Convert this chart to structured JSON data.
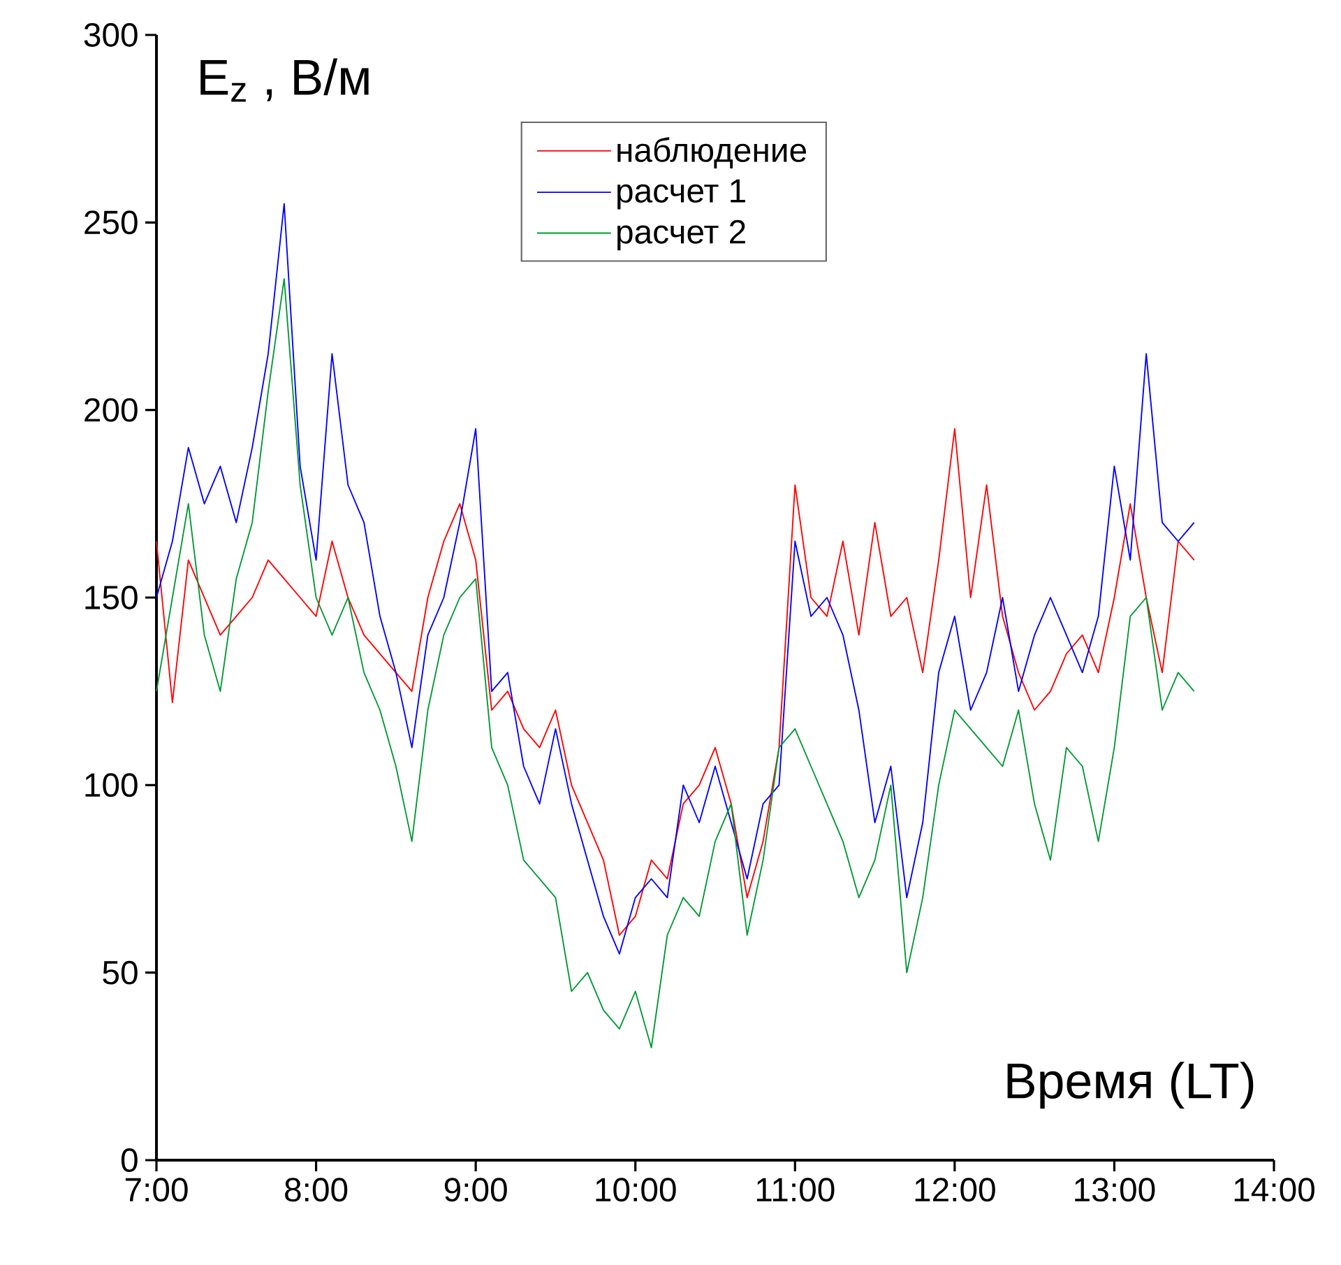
{
  "chart_data": {
    "type": "line",
    "xlabel": "Время (LT)",
    "ylabel": "E$_{z}$ , В/м",
    "x": [
      7.0,
      7.1,
      7.2,
      7.3,
      7.4,
      7.5,
      7.6,
      7.7,
      7.8,
      7.9,
      8.0,
      8.1,
      8.2,
      8.3,
      8.4,
      8.5,
      8.6,
      8.7,
      8.8,
      8.9,
      9.0,
      9.1,
      9.2,
      9.3,
      9.4,
      9.5,
      9.6,
      9.7,
      9.8,
      9.9,
      10.0,
      10.1,
      10.2,
      10.3,
      10.4,
      10.5,
      10.6,
      10.7,
      10.8,
      10.9,
      11.0,
      11.1,
      11.2,
      11.3,
      11.4,
      11.5,
      11.6,
      11.7,
      11.8,
      11.9,
      12.0,
      12.1,
      12.2,
      12.3,
      12.4,
      12.5,
      12.6,
      12.7,
      12.8,
      12.9,
      13.0,
      13.1,
      13.2,
      13.3,
      13.4,
      13.5
    ],
    "series": [
      {
        "name": "наблюдение",
        "color": "#ff0000",
        "values": [
          165,
          122,
          160,
          150,
          140,
          145,
          150,
          160,
          155,
          150,
          145,
          165,
          150,
          140,
          135,
          130,
          125,
          150,
          165,
          175,
          160,
          120,
          125,
          115,
          110,
          120,
          100,
          90,
          80,
          60,
          65,
          80,
          75,
          95,
          100,
          110,
          95,
          70,
          85,
          110,
          180,
          150,
          145,
          165,
          140,
          170,
          145,
          150,
          130,
          160,
          195,
          150,
          180,
          145,
          130,
          120,
          125,
          135,
          140,
          130,
          150,
          175,
          150,
          130,
          165,
          160
        ]
      },
      {
        "name": "расчет 1",
        "color": "#0000ff",
        "values": [
          150,
          165,
          190,
          175,
          185,
          170,
          190,
          215,
          255,
          185,
          160,
          215,
          180,
          170,
          145,
          130,
          110,
          140,
          150,
          170,
          195,
          125,
          130,
          105,
          95,
          115,
          95,
          80,
          65,
          55,
          70,
          75,
          70,
          100,
          90,
          105,
          90,
          75,
          95,
          100,
          165,
          145,
          150,
          140,
          120,
          90,
          105,
          70,
          90,
          130,
          145,
          120,
          130,
          150,
          125,
          140,
          150,
          140,
          130,
          145,
          185,
          160,
          215,
          170,
          165,
          170
        ]
      },
      {
        "name": "расчет 2",
        "color": "#009933",
        "values": [
          125,
          150,
          175,
          140,
          125,
          155,
          170,
          205,
          235,
          180,
          150,
          140,
          150,
          130,
          120,
          105,
          85,
          120,
          140,
          150,
          155,
          110,
          100,
          80,
          75,
          70,
          45,
          50,
          40,
          35,
          45,
          30,
          60,
          70,
          65,
          85,
          95,
          60,
          80,
          110,
          115,
          105,
          95,
          85,
          70,
          80,
          100,
          50,
          70,
          100,
          120,
          115,
          110,
          105,
          120,
          95,
          80,
          110,
          105,
          85,
          110,
          145,
          150,
          120,
          130,
          125
        ]
      }
    ],
    "xlim": [
      7,
      14
    ],
    "ylim": [
      0,
      300
    ],
    "xticks": [
      {
        "value": 7,
        "label": "7:00"
      },
      {
        "value": 8,
        "label": "8:00"
      },
      {
        "value": 9,
        "label": "9:00"
      },
      {
        "value": 10,
        "label": "10:00"
      },
      {
        "value": 11,
        "label": "11:00"
      },
      {
        "value": 12,
        "label": "12:00"
      },
      {
        "value": 13,
        "label": "13:00"
      },
      {
        "value": 14,
        "label": "14:00"
      }
    ],
    "yticks": [
      0,
      50,
      100,
      150,
      200,
      250,
      300
    ],
    "legend": "top",
    "marker": "none",
    "line_style": "solid"
  }
}
